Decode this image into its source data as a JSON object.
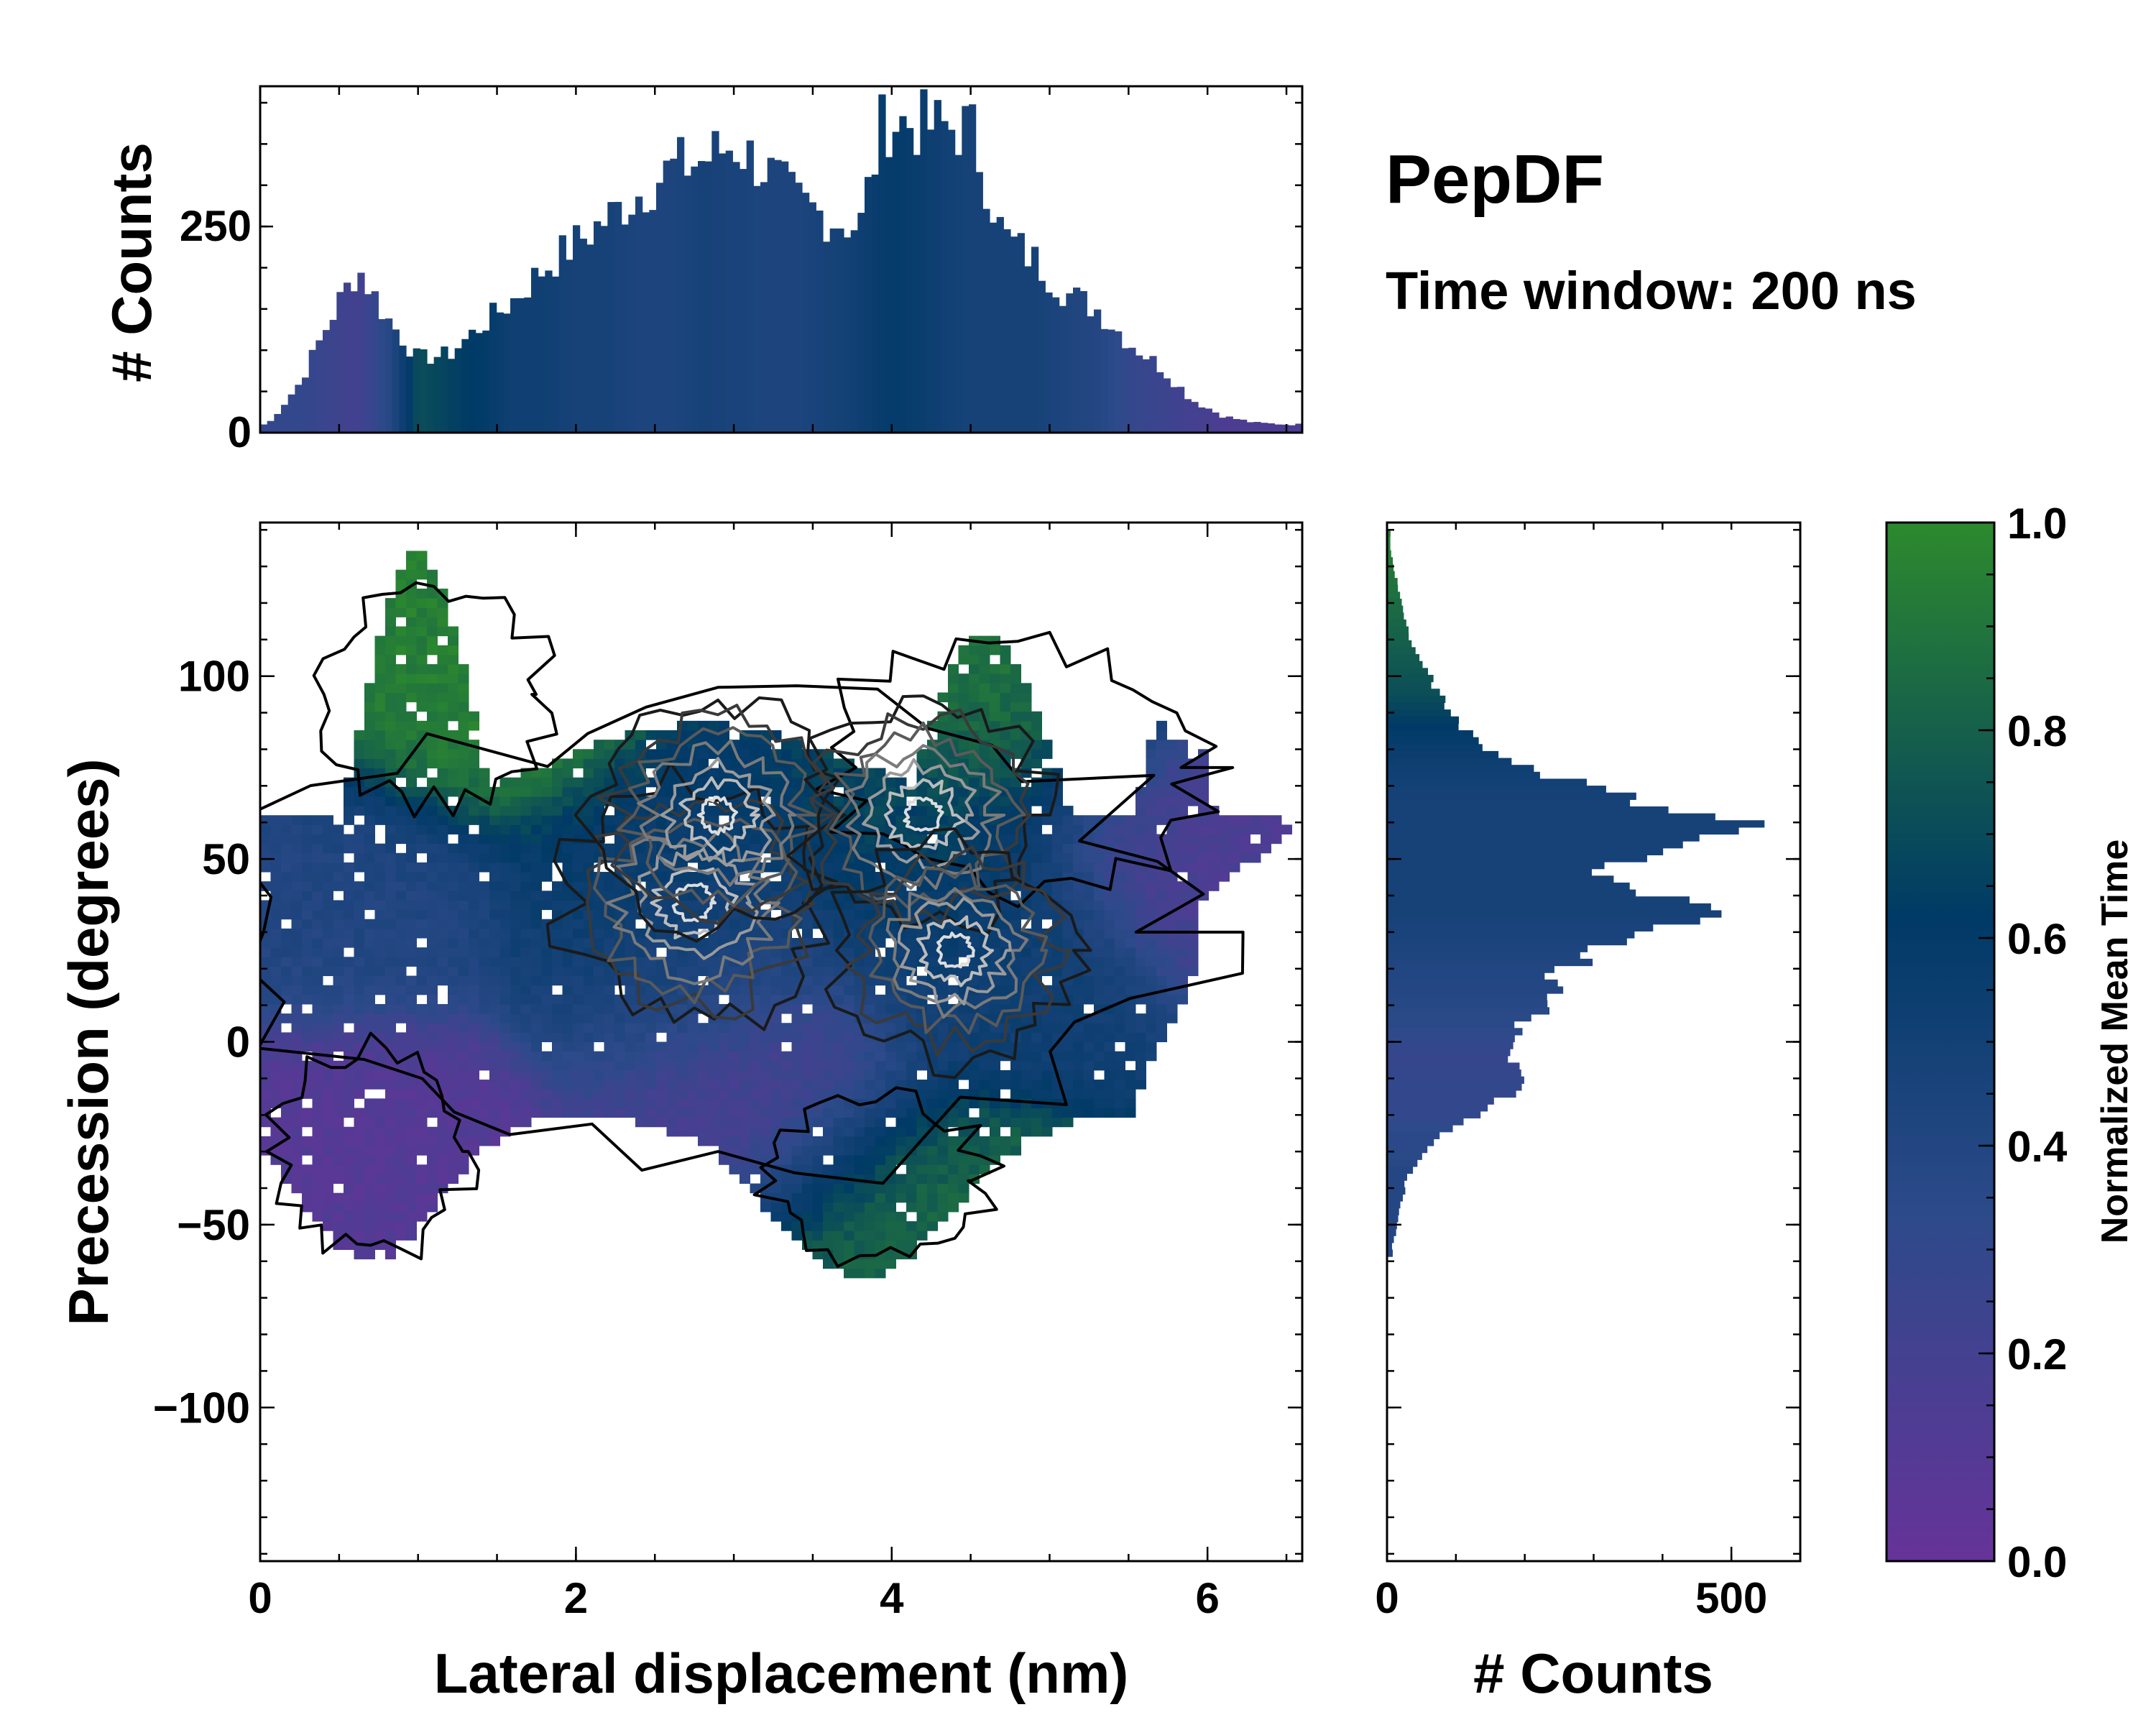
{
  "title": "PepDF",
  "subtitle": "Time window: 200 ns",
  "chart_data": [
    {
      "type": "bar",
      "name": "top-marginal-histogram",
      "description_role": "x marginal",
      "ylabel": "# Counts",
      "xlim": [
        0,
        6.6
      ],
      "ylim": [
        0,
        420
      ],
      "yticks": [
        0,
        250
      ],
      "x": [
        0.05,
        0.25,
        0.45,
        0.62,
        0.8,
        1.0,
        1.2,
        1.4,
        1.6,
        1.8,
        2.0,
        2.2,
        2.4,
        2.6,
        2.8,
        3.0,
        3.2,
        3.4,
        3.6,
        3.8,
        3.95,
        4.1,
        4.3,
        4.5,
        4.7,
        4.9,
        5.1,
        5.3,
        5.5,
        5.7,
        5.9,
        6.1,
        6.3,
        6.5
      ],
      "values": [
        10,
        60,
        140,
        200,
        140,
        90,
        95,
        130,
        160,
        200,
        230,
        260,
        290,
        320,
        330,
        350,
        320,
        280,
        260,
        250,
        380,
        375,
        370,
        370,
        240,
        210,
        170,
        150,
        110,
        80,
        40,
        20,
        12,
        10
      ],
      "colors": [
        0.3,
        0.3,
        0.25,
        0.2,
        0.35,
        0.75,
        0.7,
        0.65,
        0.55,
        0.55,
        0.5,
        0.5,
        0.45,
        0.45,
        0.5,
        0.48,
        0.45,
        0.45,
        0.5,
        0.55,
        0.62,
        0.62,
        0.55,
        0.5,
        0.5,
        0.5,
        0.45,
        0.4,
        0.3,
        0.25,
        0.2,
        0.15,
        0.15,
        0.15
      ]
    },
    {
      "type": "bar",
      "name": "right-marginal-histogram",
      "orientation": "horizontal",
      "xlabel": "# Counts",
      "xlim": [
        0,
        600
      ],
      "xticks": [
        0,
        500
      ],
      "y": [
        135,
        125,
        115,
        105,
        95,
        85,
        75,
        65,
        58,
        52,
        45,
        40,
        35,
        30,
        25,
        20,
        15,
        10,
        5,
        0,
        -5,
        -10,
        -15,
        -20,
        -25,
        -30,
        -35,
        -40,
        -45,
        -50,
        -55
      ],
      "values": [
        5,
        15,
        25,
        45,
        80,
        110,
        200,
        380,
        540,
        380,
        300,
        410,
        460,
        350,
        300,
        260,
        240,
        250,
        200,
        170,
        160,
        210,
        170,
        140,
        80,
        55,
        35,
        25,
        20,
        15,
        8
      ],
      "colors": [
        0.95,
        0.9,
        0.85,
        0.8,
        0.75,
        0.65,
        0.55,
        0.5,
        0.5,
        0.5,
        0.5,
        0.5,
        0.5,
        0.48,
        0.45,
        0.42,
        0.4,
        0.38,
        0.35,
        0.3,
        0.28,
        0.3,
        0.3,
        0.3,
        0.35,
        0.35,
        0.4,
        0.4,
        0.4,
        0.4,
        0.4
      ]
    },
    {
      "type": "heatmap",
      "name": "joint-distribution",
      "xlabel": "Lateral displacement (nm)",
      "ylabel": "Precession (degrees)",
      "xlim": [
        0,
        6.6
      ],
      "ylim": [
        -142,
        142
      ],
      "xticks": [
        0,
        2,
        4,
        6
      ],
      "yticks": [
        -100,
        -50,
        0,
        50,
        100
      ],
      "cmap": [
        "#663399",
        "#2d4a8a",
        "#003a66",
        "#2d8a2d"
      ],
      "blobs": [
        {
          "x": 1.2,
          "y": 95,
          "value": 0.95
        },
        {
          "x": 0.5,
          "y": 40,
          "value": 0.42
        },
        {
          "x": 0.6,
          "y": -30,
          "value": 0.1
        },
        {
          "x": 2.8,
          "y": 20,
          "value": 0.4
        },
        {
          "x": 2.6,
          "y": 40,
          "value": 0.65
        },
        {
          "x": 3.2,
          "y": -15,
          "value": 0.15
        },
        {
          "x": 4.3,
          "y": 55,
          "value": 0.7
        },
        {
          "x": 4.6,
          "y": 25,
          "value": 0.55
        },
        {
          "x": 4.9,
          "y": 90,
          "value": 0.9
        },
        {
          "x": 5.7,
          "y": 60,
          "value": 0.15
        },
        {
          "x": 4.0,
          "y": -45,
          "value": 0.85
        }
      ],
      "density_peaks": [
        {
          "x": 2.75,
          "y": 38,
          "level": 1.0
        },
        {
          "x": 2.9,
          "y": 62,
          "level": 0.85
        },
        {
          "x": 4.2,
          "y": 62,
          "level": 0.85
        },
        {
          "x": 4.4,
          "y": 25,
          "level": 0.75
        }
      ]
    },
    {
      "type": "colorbar",
      "name": "colorbar",
      "label": "Normalized Mean Time",
      "range": [
        0.0,
        1.0
      ],
      "ticks": [
        "0.0",
        "0.2",
        "0.4",
        "0.6",
        "0.8",
        "1.0"
      ],
      "stops": [
        "#663399",
        "#2d4a8a",
        "#003a66",
        "#2d8a2d"
      ]
    }
  ]
}
